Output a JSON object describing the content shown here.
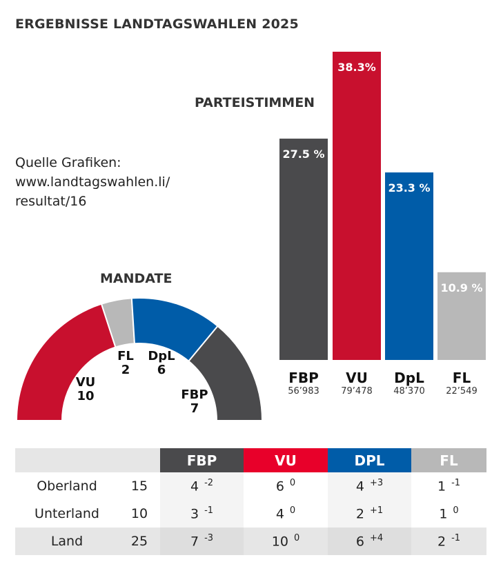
{
  "title": "ERGEBNISSE LANDTAGSWAHLEN 2025",
  "source": [
    "Quelle Grafiken:",
    "www.landtagswahlen.li/",
    "resultat/16"
  ],
  "colors": {
    "FBP": "#4a4a4c",
    "VU": "#c8102e",
    "DpL": "#005ca8",
    "FL": "#b8b8b8",
    "VU_header": "#e8002a"
  },
  "chart_data": [
    {
      "type": "bar",
      "title": "PARTEISTIMMEN",
      "categories": [
        "FBP",
        "VU",
        "DpL",
        "FL"
      ],
      "values": [
        27.5,
        38.3,
        23.3,
        10.9
      ],
      "labels": [
        "27.5 %",
        "38.3%",
        "23.3 %",
        "10.9 %"
      ],
      "votes": [
        "56’983",
        "79’478",
        "48’370",
        "22’549"
      ],
      "ylim": [
        0,
        38.3
      ]
    },
    {
      "type": "pie",
      "title": "MANDATE",
      "subtype": "semicircle",
      "categories": [
        "VU",
        "FL",
        "DpL",
        "FBP"
      ],
      "values": [
        10,
        2,
        6,
        7
      ]
    }
  ],
  "table": {
    "headers": [
      "FBP",
      "VU",
      "DPL",
      "FL"
    ],
    "rows": [
      {
        "label": "Oberland",
        "total": "15",
        "cells": [
          [
            "4",
            "-2"
          ],
          [
            "6",
            "0"
          ],
          [
            "4",
            "+3"
          ],
          [
            "1",
            "-1"
          ]
        ]
      },
      {
        "label": "Unterland",
        "total": "10",
        "cells": [
          [
            "3",
            "-1"
          ],
          [
            "4",
            "0"
          ],
          [
            "2",
            "+1"
          ],
          [
            "1",
            "0"
          ]
        ]
      },
      {
        "label": "Land",
        "total": "25",
        "cells": [
          [
            "7",
            "-3"
          ],
          [
            "10",
            "0"
          ],
          [
            "6",
            "+4"
          ],
          [
            "2",
            "-1"
          ]
        ]
      }
    ]
  }
}
